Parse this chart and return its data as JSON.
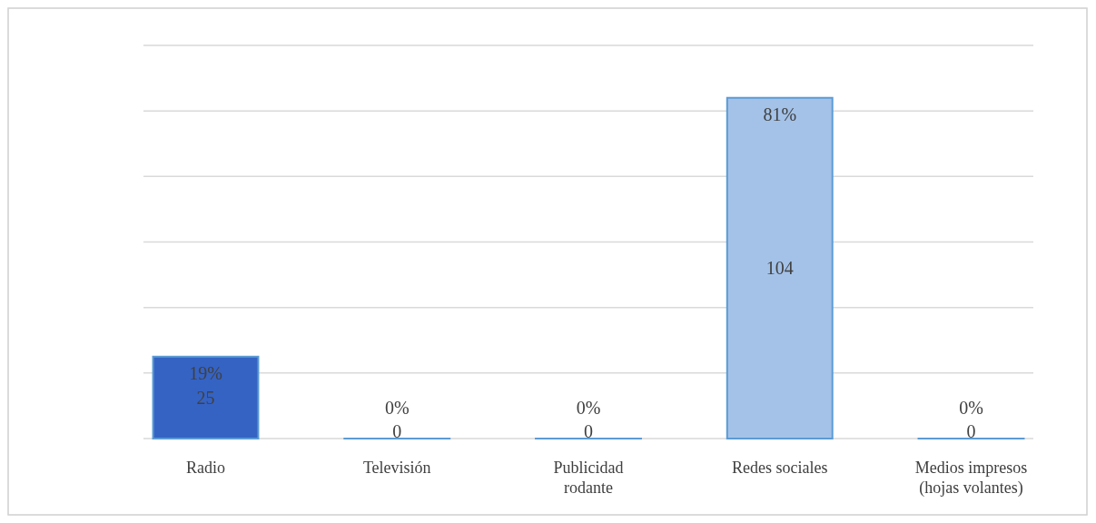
{
  "chart_data": {
    "type": "bar",
    "categories": [
      "Radio",
      "Televisión",
      "Publicidad rodante",
      "Redes sociales",
      "Medios impresos (hojas volantes)"
    ],
    "values": [
      25,
      0,
      0,
      104,
      0
    ],
    "colors": [
      "#3563c4",
      "#5b9bd5",
      "#5b9bd5",
      "#a4c2e8",
      "#5b9bd5"
    ],
    "data_labels": true,
    "annotations": [
      {
        "text": "19%",
        "x": "Radio",
        "y": 25
      },
      {
        "text": "0%",
        "x": "Televisión",
        "y": 0
      },
      {
        "text": "0%",
        "x": "Publicidad rodante",
        "y": 0
      },
      {
        "text": "81%",
        "x": "Redes sociales",
        "y": 104
      },
      {
        "text": "0%",
        "x": "Medios impresos (hojas volantes)",
        "y": 0
      }
    ],
    "ylim": [
      0,
      120
    ],
    "yticks": [
      {
        "value": 0,
        "label": null
      },
      {
        "value": 20,
        "label": null
      },
      {
        "value": 40,
        "label": null
      },
      {
        "value": 60,
        "label": null
      },
      {
        "value": 80,
        "label": null
      },
      {
        "value": 100,
        "label": null
      },
      {
        "value": 120,
        "label": null
      }
    ],
    "grid": "y",
    "tick_labels": "x"
  }
}
